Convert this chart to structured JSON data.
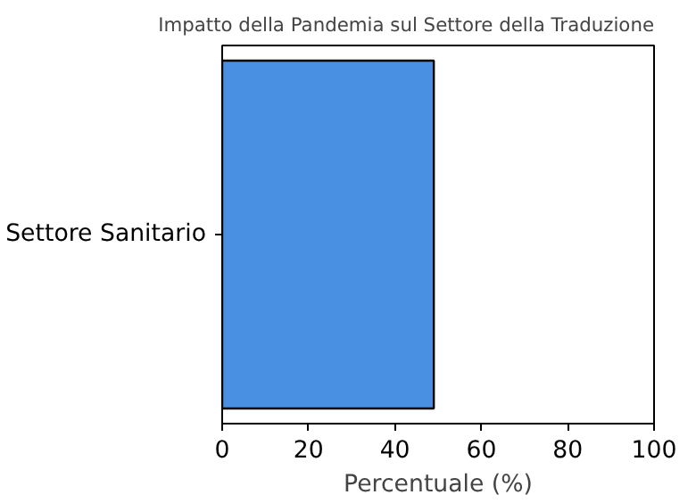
{
  "chart_data": {
    "type": "bar",
    "orientation": "horizontal",
    "title": "Impatto della Pandemia sul Settore della Traduzione",
    "xlabel": "Percentuale (%)",
    "categories": [
      "Settore Sanitario"
    ],
    "values": [
      49
    ],
    "color": "#4a90e2",
    "xlim": [
      0,
      100
    ],
    "xticks": [
      0,
      20,
      40,
      60,
      80,
      100
    ],
    "grid": false
  }
}
